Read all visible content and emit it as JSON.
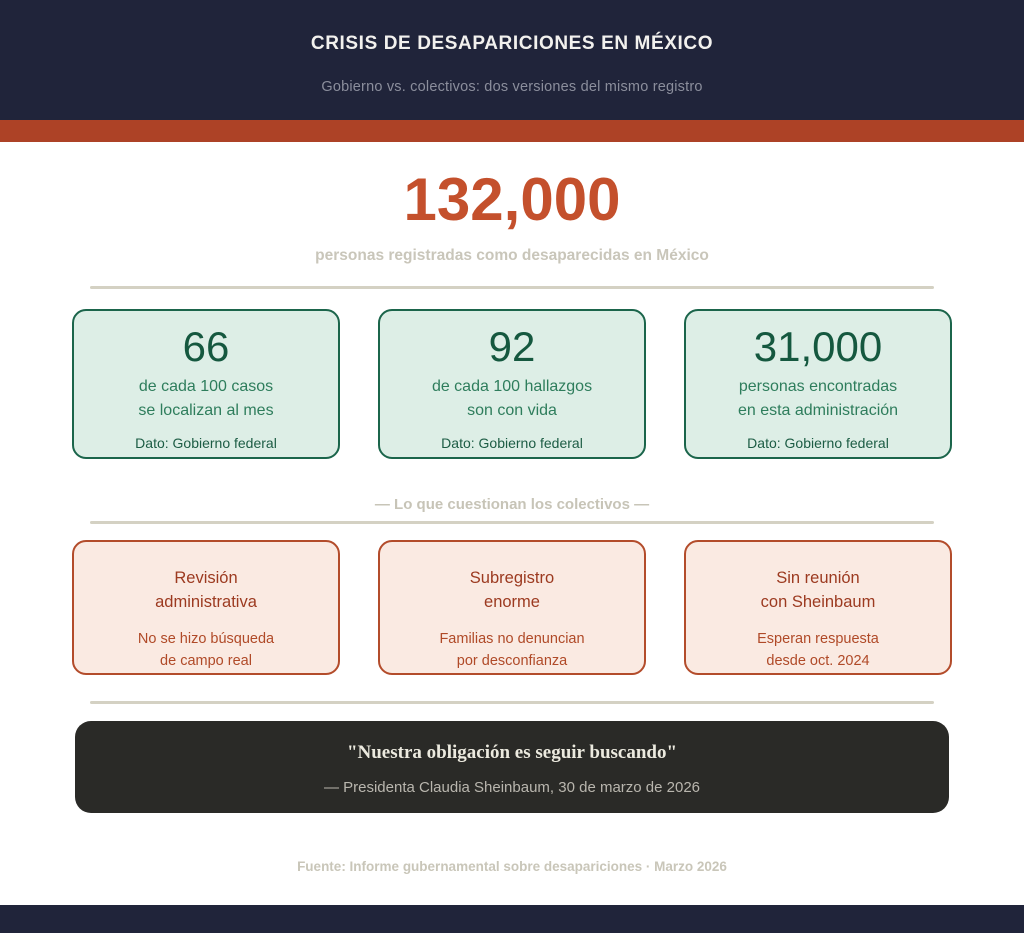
{
  "colors": {
    "header_bg": "#20243a",
    "accent_bar": "#ad4226",
    "hero_number": "#c4502c",
    "muted_beige_text": "#c9c6ba",
    "green_card_bg": "#ddeee6",
    "green_card_border": "#1b654b",
    "green_number": "#15583f",
    "green_text": "#2e7d5c",
    "pink_card_bg": "#faeae2",
    "pink_card_border": "#b34c2b",
    "pink_title": "#9c3a20",
    "pink_text": "#b04a28",
    "quote_box_bg": "#2a2a27",
    "quote_text": "#eceadf",
    "divider": "#d4d1c3"
  },
  "header": {
    "title": "CRISIS DE DESAPARICIONES EN MÉXICO",
    "subtitle": "Gobierno vs. colectivos: dos versiones del mismo registro"
  },
  "hero": {
    "number": "132,000",
    "caption": "personas registradas como desaparecidas en México"
  },
  "government_cards": [
    {
      "value": "66",
      "line1": "de cada 100 casos",
      "line2": "se localizan al mes",
      "source": "Dato: Gobierno federal"
    },
    {
      "value": "92",
      "line1": "de cada 100 hallazgos",
      "line2": "son con vida",
      "source": "Dato: Gobierno federal"
    },
    {
      "value": "31,000",
      "line1": "personas encontradas",
      "line2": "en esta administración",
      "source": "Dato: Gobierno federal"
    }
  ],
  "collectives_section": {
    "label": "— Lo que cuestionan los colectivos —",
    "cards": [
      {
        "title1": "Revisión",
        "title2": "administrativa",
        "body1": "No se hizo búsqueda",
        "body2": "de campo real"
      },
      {
        "title1": "Subregistro",
        "title2": "enorme",
        "body1": "Familias no denuncian",
        "body2": "por desconfianza"
      },
      {
        "title1": "Sin reunión",
        "title2": "con Sheinbaum",
        "body1": "Esperan respuesta",
        "body2": "desde oct. 2024"
      }
    ]
  },
  "quote": {
    "text": "\"Nuestra obligación es seguir buscando\"",
    "attribution": "— Presidenta Claudia Sheinbaum, 30 de marzo de 2026"
  },
  "footer": {
    "source": "Fuente: Informe gubernamental sobre desapariciones · Marzo 2026"
  }
}
